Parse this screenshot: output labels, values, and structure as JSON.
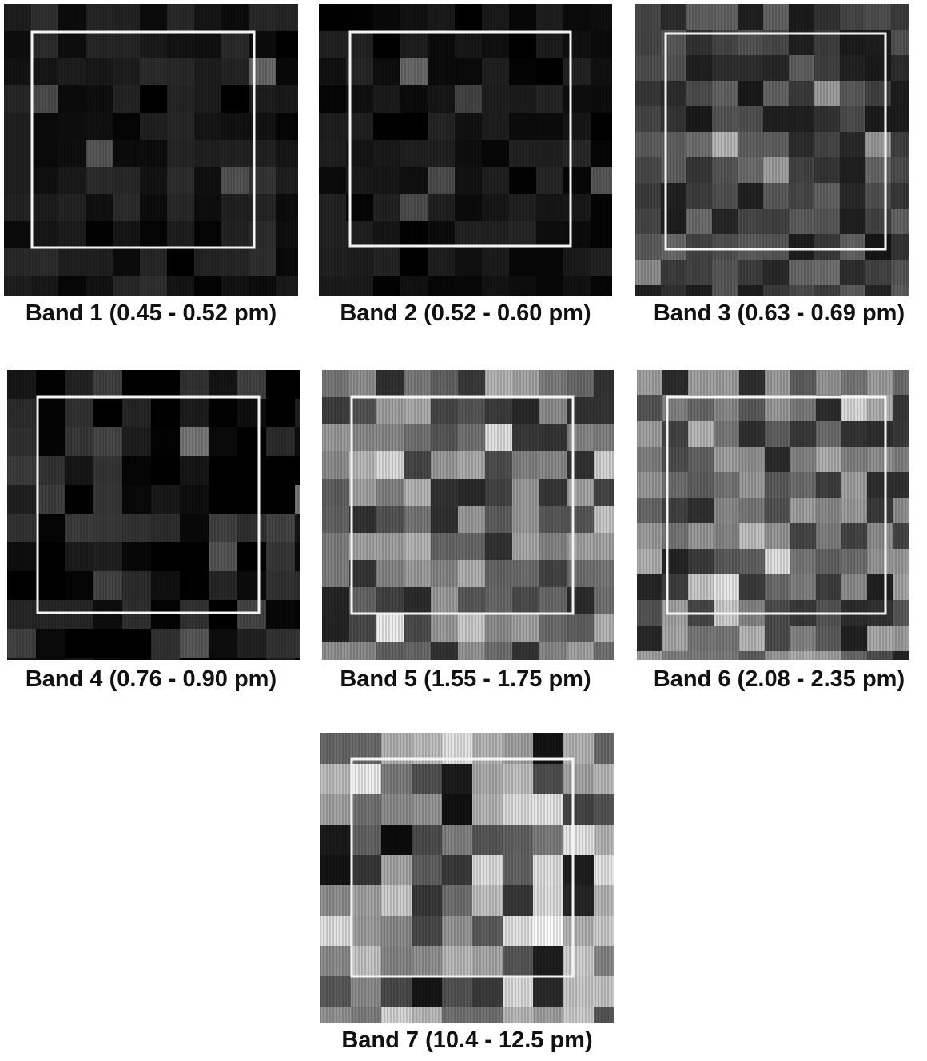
{
  "panels": [
    {
      "caption": "Band 1 (0.45 - 0.52 pm)"
    },
    {
      "caption": "Band 2 (0.52 - 0.60 pm)"
    },
    {
      "caption": "Band 3 (0.63 - 0.69 pm)"
    },
    {
      "caption": "Band 4 (0.76 - 0.90 pm)"
    },
    {
      "caption": "Band 5 (1.55 - 1.75 pm)"
    },
    {
      "caption": "Band 6 (2.08 - 2.35 pm)"
    },
    {
      "caption": "Band 7 (10.4 - 12.5 pm)"
    }
  ]
}
